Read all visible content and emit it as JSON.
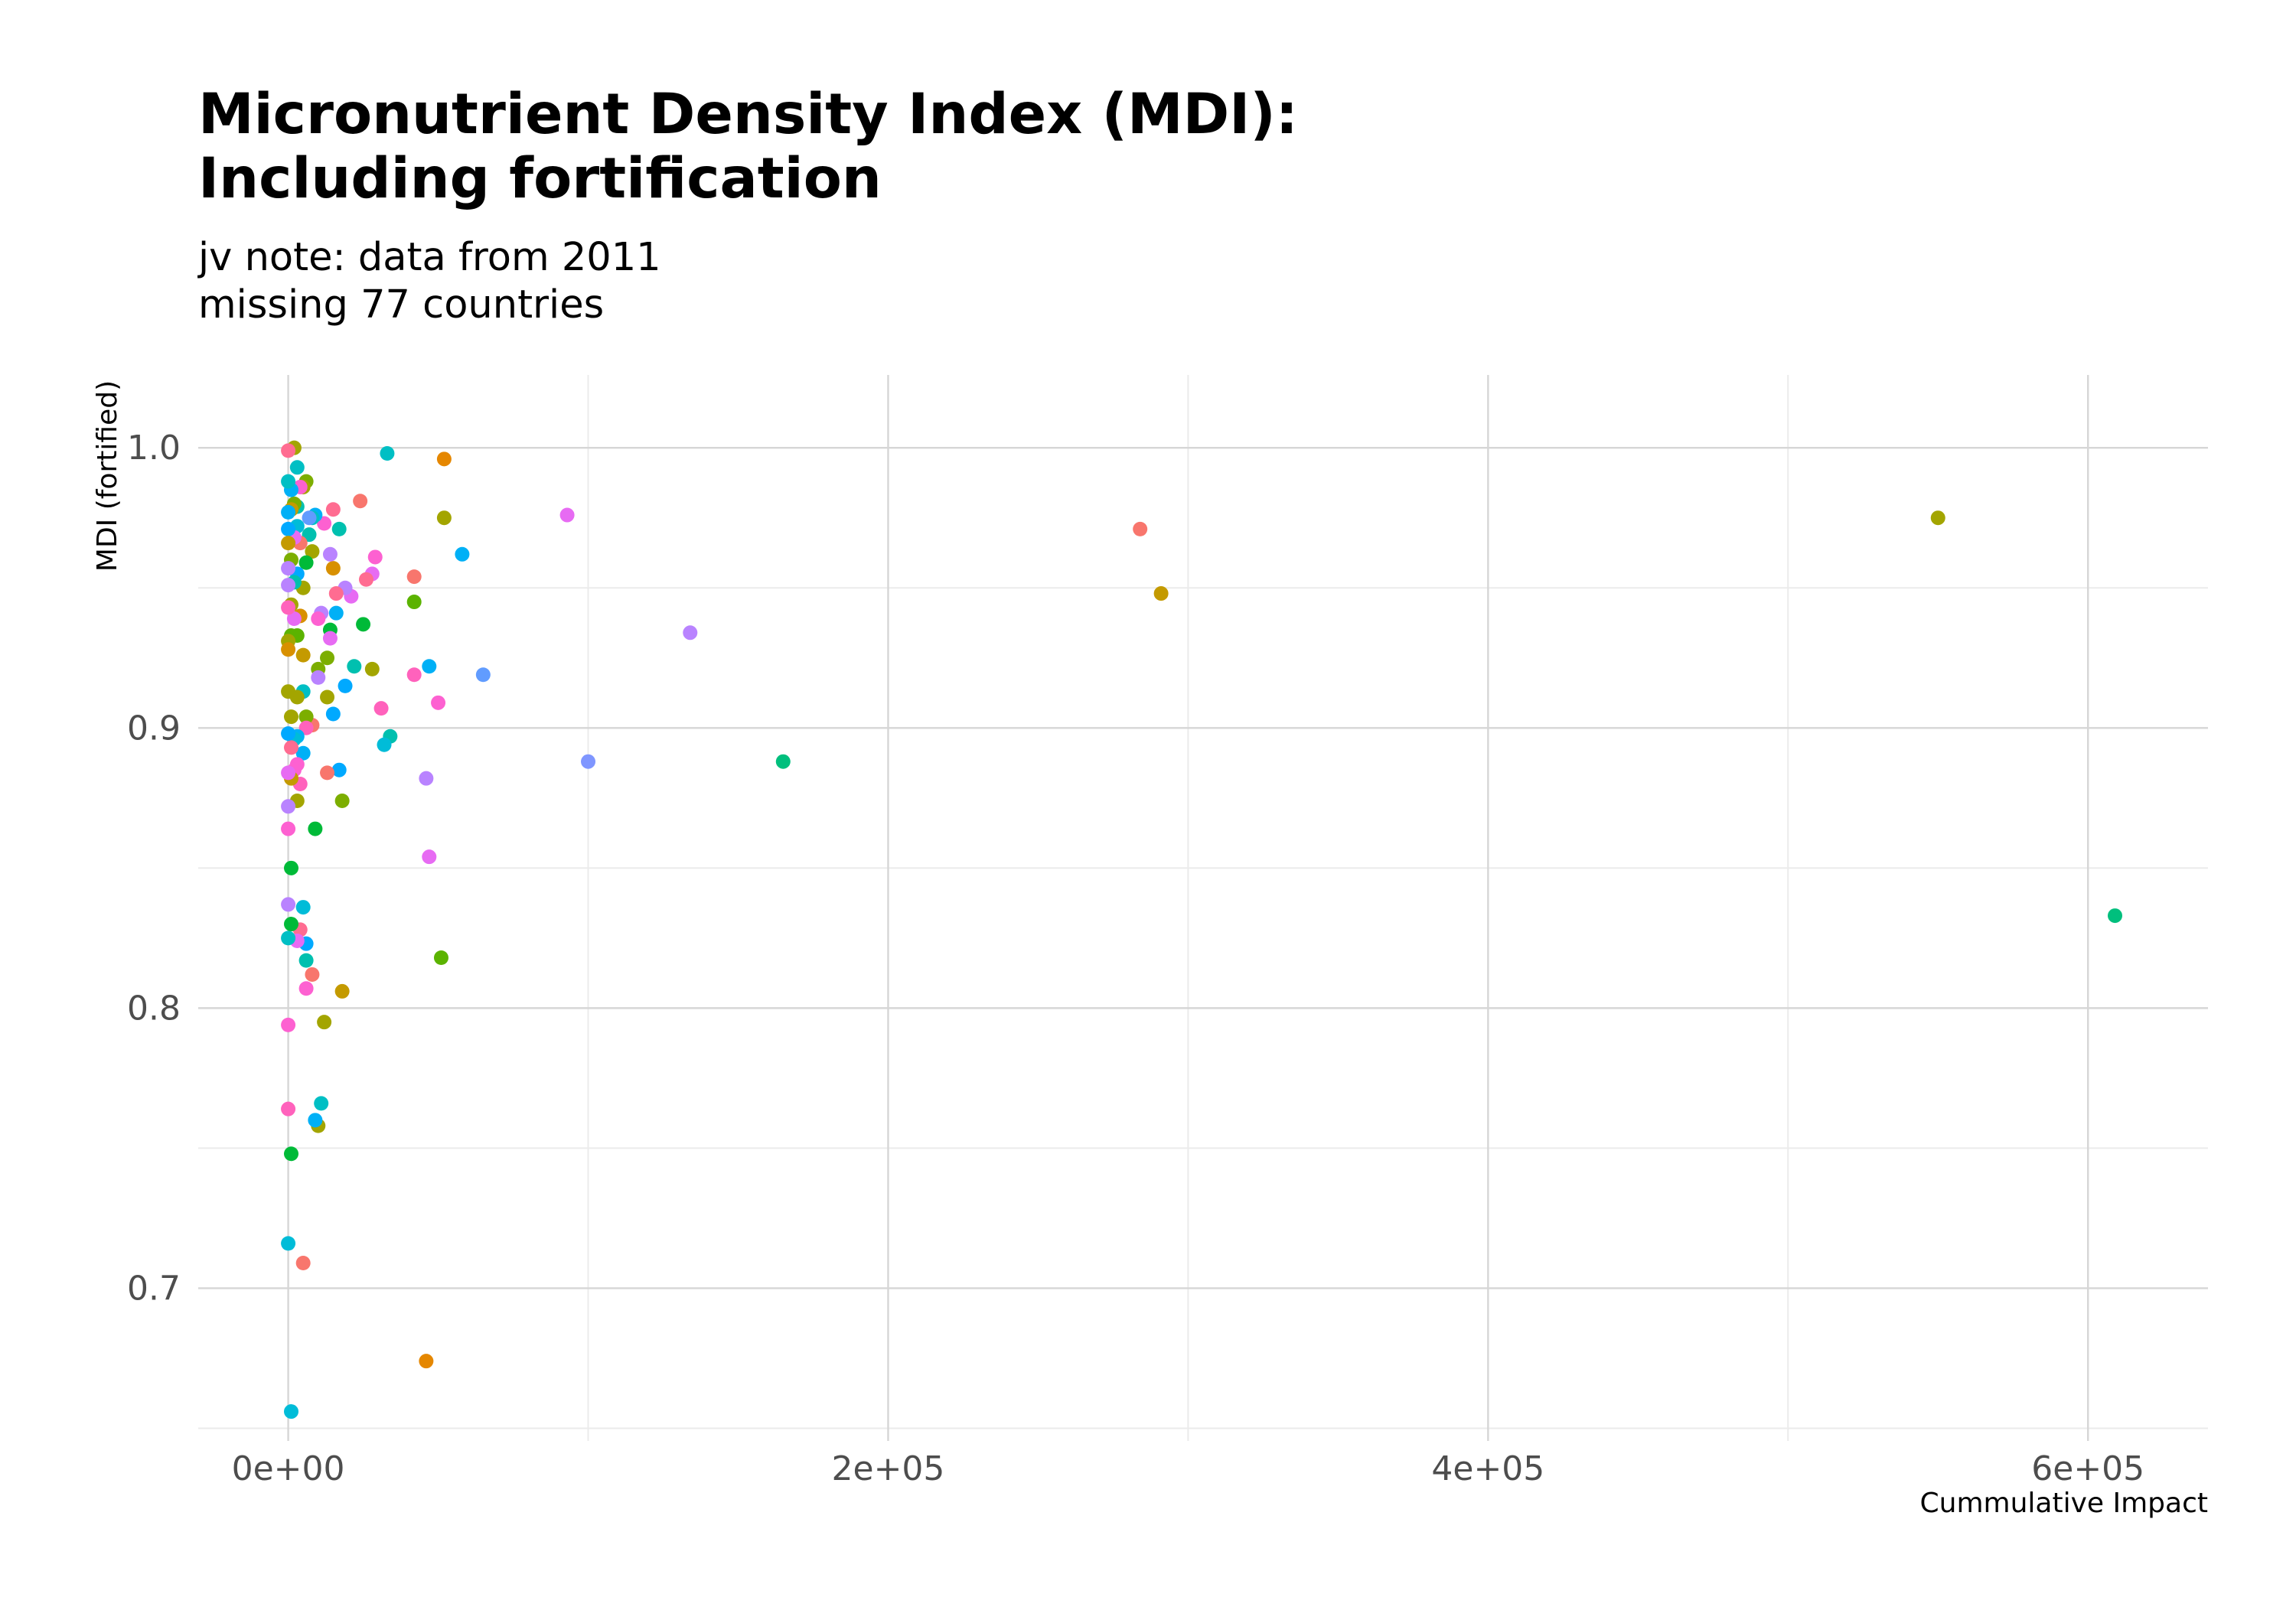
{
  "chart_data": {
    "type": "scatter",
    "title": [
      "Micronutrient Density Index (MDI):",
      "Including fortification"
    ],
    "subtitle": [
      "jv note: data from 2011",
      "missing 77 countries"
    ],
    "xlabel": "Cummulative Impact",
    "ylabel": "MDI (fortified)",
    "xlim": [
      -30000,
      640000
    ],
    "ylim": [
      0.6455,
      1.026
    ],
    "x_ticks": [
      0,
      200000,
      400000,
      600000
    ],
    "x_tick_labels": [
      "0e+00",
      "2e+05",
      "4e+05",
      "6e+05"
    ],
    "y_ticks": [
      0.7,
      0.8,
      0.9,
      1.0
    ],
    "y_tick_labels": [
      "0.7",
      "0.8",
      "0.9",
      "1.0"
    ],
    "grid": true,
    "legend": "none",
    "points": [
      {
        "x": 550000,
        "y": 0.975,
        "color": "#a3a500"
      },
      {
        "x": 609000,
        "y": 0.833,
        "color": "#00bf7d"
      },
      {
        "x": 284000,
        "y": 0.971,
        "color": "#f8766d"
      },
      {
        "x": 291000,
        "y": 0.948,
        "color": "#c49a00"
      },
      {
        "x": 165000,
        "y": 0.888,
        "color": "#00bf7d"
      },
      {
        "x": 134000,
        "y": 0.934,
        "color": "#b983ff"
      },
      {
        "x": 100000,
        "y": 0.888,
        "color": "#7f96ff"
      },
      {
        "x": 93000,
        "y": 0.976,
        "color": "#e76bf3"
      },
      {
        "x": 65000,
        "y": 0.919,
        "color": "#619cff"
      },
      {
        "x": 58000,
        "y": 0.962,
        "color": "#00b0f6"
      },
      {
        "x": 52000,
        "y": 0.996,
        "color": "#e58700"
      },
      {
        "x": 52000,
        "y": 0.975,
        "color": "#a3a500"
      },
      {
        "x": 51000,
        "y": 0.818,
        "color": "#5bb300"
      },
      {
        "x": 50000,
        "y": 0.909,
        "color": "#fd61d1"
      },
      {
        "x": 47000,
        "y": 0.922,
        "color": "#00b0f6"
      },
      {
        "x": 47000,
        "y": 0.854,
        "color": "#e76bf3"
      },
      {
        "x": 46000,
        "y": 0.882,
        "color": "#b983ff"
      },
      {
        "x": 46000,
        "y": 0.674,
        "color": "#e58700"
      },
      {
        "x": 42000,
        "y": 0.954,
        "color": "#f8766d"
      },
      {
        "x": 42000,
        "y": 0.945,
        "color": "#5bb300"
      },
      {
        "x": 42000,
        "y": 0.919,
        "color": "#ff62bc"
      },
      {
        "x": 34000,
        "y": 0.897,
        "color": "#00c0af"
      },
      {
        "x": 33000,
        "y": 0.998,
        "color": "#00bfc4"
      },
      {
        "x": 32000,
        "y": 0.894,
        "color": "#00bcd8"
      },
      {
        "x": 31000,
        "y": 0.907,
        "color": "#ff62bc"
      },
      {
        "x": 29000,
        "y": 0.961,
        "color": "#fd61d1"
      },
      {
        "x": 28000,
        "y": 0.955,
        "color": "#e76bf3"
      },
      {
        "x": 28000,
        "y": 0.921,
        "color": "#a3a500"
      },
      {
        "x": 26000,
        "y": 0.953,
        "color": "#ff6c91"
      },
      {
        "x": 25000,
        "y": 0.937,
        "color": "#00ba38"
      },
      {
        "x": 24000,
        "y": 0.981,
        "color": "#f8766d"
      },
      {
        "x": 22000,
        "y": 0.922,
        "color": "#00c0af"
      },
      {
        "x": 21000,
        "y": 0.947,
        "color": "#e76bf3"
      },
      {
        "x": 19000,
        "y": 0.95,
        "color": "#b983ff"
      },
      {
        "x": 19000,
        "y": 0.915,
        "color": "#00a9ff"
      },
      {
        "x": 18000,
        "y": 0.874,
        "color": "#7cae00"
      },
      {
        "x": 18000,
        "y": 0.806,
        "color": "#c49a00"
      },
      {
        "x": 17000,
        "y": 0.971,
        "color": "#00c0af"
      },
      {
        "x": 17000,
        "y": 0.885,
        "color": "#00a9ff"
      },
      {
        "x": 16000,
        "y": 0.948,
        "color": "#ff6c91"
      },
      {
        "x": 16000,
        "y": 0.941,
        "color": "#00b0f6"
      },
      {
        "x": 15000,
        "y": 0.978,
        "color": "#ff6c91"
      },
      {
        "x": 15000,
        "y": 0.957,
        "color": "#d89000"
      },
      {
        "x": 15000,
        "y": 0.905,
        "color": "#00a9ff"
      },
      {
        "x": 14000,
        "y": 0.962,
        "color": "#b983ff"
      },
      {
        "x": 14000,
        "y": 0.935,
        "color": "#00ba38"
      },
      {
        "x": 14000,
        "y": 0.932,
        "color": "#e76bf3"
      },
      {
        "x": 13000,
        "y": 0.925,
        "color": "#7cae00"
      },
      {
        "x": 13000,
        "y": 0.911,
        "color": "#a3a500"
      },
      {
        "x": 13000,
        "y": 0.884,
        "color": "#f8766d"
      },
      {
        "x": 12000,
        "y": 0.973,
        "color": "#fd61d1"
      },
      {
        "x": 12000,
        "y": 0.795,
        "color": "#a3a500"
      },
      {
        "x": 11000,
        "y": 0.941,
        "color": "#b983ff"
      },
      {
        "x": 11000,
        "y": 0.766,
        "color": "#00bfc4"
      },
      {
        "x": 10000,
        "y": 0.939,
        "color": "#fd61d1"
      },
      {
        "x": 10000,
        "y": 0.921,
        "color": "#7cae00"
      },
      {
        "x": 10000,
        "y": 0.918,
        "color": "#b983ff"
      },
      {
        "x": 10000,
        "y": 0.758,
        "color": "#a3a500"
      },
      {
        "x": 9000,
        "y": 0.976,
        "color": "#00b0f6"
      },
      {
        "x": 9000,
        "y": 0.864,
        "color": "#00ba38"
      },
      {
        "x": 9000,
        "y": 0.76,
        "color": "#00b0f6"
      },
      {
        "x": 8000,
        "y": 0.975,
        "color": "#00bfc4"
      },
      {
        "x": 8000,
        "y": 0.963,
        "color": "#a3a500"
      },
      {
        "x": 8000,
        "y": 0.901,
        "color": "#f8766d"
      },
      {
        "x": 8000,
        "y": 0.812,
        "color": "#f8766d"
      },
      {
        "x": 7000,
        "y": 0.969,
        "color": "#00c0af"
      },
      {
        "x": 7000,
        "y": 0.975,
        "color": "#619cff"
      },
      {
        "x": 6000,
        "y": 0.959,
        "color": "#00ba38"
      },
      {
        "x": 6000,
        "y": 0.988,
        "color": "#7cae00"
      },
      {
        "x": 6000,
        "y": 0.904,
        "color": "#7cae00"
      },
      {
        "x": 6000,
        "y": 0.9,
        "color": "#ff62bc"
      },
      {
        "x": 6000,
        "y": 0.823,
        "color": "#00a9ff"
      },
      {
        "x": 6000,
        "y": 0.817,
        "color": "#00c0af"
      },
      {
        "x": 6000,
        "y": 0.807,
        "color": "#fd61d1"
      },
      {
        "x": 5000,
        "y": 0.986,
        "color": "#a3a500"
      },
      {
        "x": 5000,
        "y": 0.95,
        "color": "#a3a500"
      },
      {
        "x": 5000,
        "y": 0.926,
        "color": "#c49a00"
      },
      {
        "x": 5000,
        "y": 0.913,
        "color": "#00bfc4"
      },
      {
        "x": 5000,
        "y": 0.891,
        "color": "#00b0f6"
      },
      {
        "x": 5000,
        "y": 0.836,
        "color": "#00bcd8"
      },
      {
        "x": 5000,
        "y": 0.709,
        "color": "#f8766d"
      },
      {
        "x": 4000,
        "y": 0.986,
        "color": "#fd61d1"
      },
      {
        "x": 4000,
        "y": 0.966,
        "color": "#f8766d"
      },
      {
        "x": 4000,
        "y": 0.94,
        "color": "#d89000"
      },
      {
        "x": 4000,
        "y": 0.88,
        "color": "#ff62bc"
      },
      {
        "x": 4000,
        "y": 0.828,
        "color": "#ff6c91"
      },
      {
        "x": 3000,
        "y": 0.993,
        "color": "#00bfc4"
      },
      {
        "x": 3000,
        "y": 0.979,
        "color": "#00c0af"
      },
      {
        "x": 3000,
        "y": 0.972,
        "color": "#00bcd8"
      },
      {
        "x": 3000,
        "y": 0.955,
        "color": "#00a9ff"
      },
      {
        "x": 3000,
        "y": 0.933,
        "color": "#5bb300"
      },
      {
        "x": 3000,
        "y": 0.911,
        "color": "#a3a500"
      },
      {
        "x": 3000,
        "y": 0.897,
        "color": "#00b0f6"
      },
      {
        "x": 3000,
        "y": 0.887,
        "color": "#fd61d1"
      },
      {
        "x": 3000,
        "y": 0.874,
        "color": "#a3a500"
      },
      {
        "x": 3000,
        "y": 0.824,
        "color": "#e76bf3"
      },
      {
        "x": 2000,
        "y": 1.0,
        "color": "#a3a500"
      },
      {
        "x": 2000,
        "y": 0.98,
        "color": "#7cae00"
      },
      {
        "x": 2000,
        "y": 0.968,
        "color": "#e76bf3"
      },
      {
        "x": 2000,
        "y": 0.952,
        "color": "#00c0af"
      },
      {
        "x": 2000,
        "y": 0.939,
        "color": "#e76bf3"
      },
      {
        "x": 2000,
        "y": 0.896,
        "color": "#00bcd8"
      },
      {
        "x": 2000,
        "y": 0.885,
        "color": "#fd61d1"
      },
      {
        "x": 1000,
        "y": 0.985,
        "color": "#00b0f6"
      },
      {
        "x": 1000,
        "y": 0.978,
        "color": "#c49a00"
      },
      {
        "x": 1000,
        "y": 0.96,
        "color": "#7cae00"
      },
      {
        "x": 1000,
        "y": 0.944,
        "color": "#a3a500"
      },
      {
        "x": 1000,
        "y": 0.933,
        "color": "#5bb300"
      },
      {
        "x": 1000,
        "y": 0.904,
        "color": "#a3a500"
      },
      {
        "x": 1000,
        "y": 0.893,
        "color": "#ff6c91"
      },
      {
        "x": 1000,
        "y": 0.882,
        "color": "#c49a00"
      },
      {
        "x": 1000,
        "y": 0.85,
        "color": "#00ba38"
      },
      {
        "x": 1000,
        "y": 0.83,
        "color": "#00ba38"
      },
      {
        "x": 1000,
        "y": 0.748,
        "color": "#00ba38"
      },
      {
        "x": 1000,
        "y": 0.656,
        "color": "#00bcd8"
      },
      {
        "x": 0,
        "y": 0.999,
        "color": "#ff6c91"
      },
      {
        "x": 0,
        "y": 0.988,
        "color": "#00bfc4"
      },
      {
        "x": 0,
        "y": 0.977,
        "color": "#00b0f6"
      },
      {
        "x": 0,
        "y": 0.971,
        "color": "#00a9ff"
      },
      {
        "x": 0,
        "y": 0.966,
        "color": "#c49a00"
      },
      {
        "x": 0,
        "y": 0.957,
        "color": "#b983ff"
      },
      {
        "x": 0,
        "y": 0.951,
        "color": "#b983ff"
      },
      {
        "x": 0,
        "y": 0.943,
        "color": "#ff62bc"
      },
      {
        "x": 0,
        "y": 0.931,
        "color": "#a3a500"
      },
      {
        "x": 0,
        "y": 0.928,
        "color": "#d89000"
      },
      {
        "x": 0,
        "y": 0.913,
        "color": "#a3a500"
      },
      {
        "x": 0,
        "y": 0.898,
        "color": "#00a9ff"
      },
      {
        "x": 0,
        "y": 0.884,
        "color": "#e76bf3"
      },
      {
        "x": 0,
        "y": 0.872,
        "color": "#b983ff"
      },
      {
        "x": 0,
        "y": 0.864,
        "color": "#fd61d1"
      },
      {
        "x": 0,
        "y": 0.837,
        "color": "#b983ff"
      },
      {
        "x": 0,
        "y": 0.825,
        "color": "#00bfc4"
      },
      {
        "x": 0,
        "y": 0.794,
        "color": "#fd61d1"
      },
      {
        "x": 0,
        "y": 0.764,
        "color": "#ff62bc"
      },
      {
        "x": 0,
        "y": 0.716,
        "color": "#00bcd8"
      }
    ]
  }
}
